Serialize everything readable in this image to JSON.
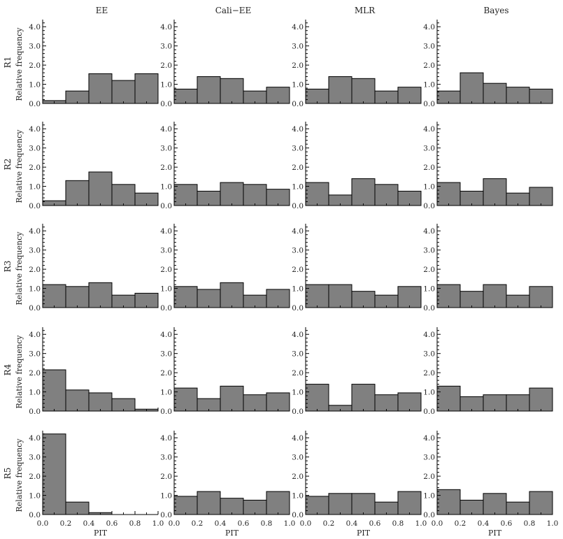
{
  "chart_data": {
    "type": "bar",
    "layout": "grid",
    "columns": [
      "EE",
      "Cali−EE",
      "MLR",
      "Bayes"
    ],
    "rows": [
      "R1",
      "R2",
      "R3",
      "R4",
      "R5"
    ],
    "ylabel": "Relative  frequency",
    "xlabel": "PIT",
    "xlim": [
      0,
      1
    ],
    "ylim": [
      0,
      4.3
    ],
    "xticks": [
      "0.0",
      "0.2",
      "0.4",
      "0.6",
      "0.8",
      "1.0"
    ],
    "yticks": [
      "0.0",
      "1.0",
      "2.0",
      "3.0",
      "4.0"
    ],
    "bins": [
      "0.0–0.2",
      "0.2–0.4",
      "0.4–0.6",
      "0.6–0.8",
      "0.8–1.0"
    ],
    "panels": [
      [
        {
          "column": "EE",
          "row": "R1",
          "values": [
            0.15,
            0.65,
            1.55,
            1.2,
            1.55
          ]
        },
        {
          "column": "Cali−EE",
          "row": "R1",
          "values": [
            0.75,
            1.4,
            1.3,
            0.65,
            0.85
          ]
        },
        {
          "column": "MLR",
          "row": "R1",
          "values": [
            0.75,
            1.4,
            1.3,
            0.65,
            0.85
          ]
        },
        {
          "column": "Bayes",
          "row": "R1",
          "values": [
            0.65,
            1.6,
            1.05,
            0.85,
            0.75
          ]
        }
      ],
      [
        {
          "column": "EE",
          "row": "R2",
          "values": [
            0.25,
            1.3,
            1.75,
            1.1,
            0.65
          ]
        },
        {
          "column": "Cali−EE",
          "row": "R2",
          "values": [
            1.1,
            0.75,
            1.2,
            1.1,
            0.85
          ]
        },
        {
          "column": "MLR",
          "row": "R2",
          "values": [
            1.2,
            0.55,
            1.4,
            1.1,
            0.75
          ]
        },
        {
          "column": "Bayes",
          "row": "R2",
          "values": [
            1.2,
            0.75,
            1.4,
            0.65,
            0.95
          ]
        }
      ],
      [
        {
          "column": "EE",
          "row": "R3",
          "values": [
            1.2,
            1.1,
            1.3,
            0.65,
            0.75
          ]
        },
        {
          "column": "Cali−EE",
          "row": "R3",
          "values": [
            1.1,
            0.95,
            1.3,
            0.65,
            0.95
          ]
        },
        {
          "column": "MLR",
          "row": "R3",
          "values": [
            1.2,
            1.2,
            0.85,
            0.65,
            1.1
          ]
        },
        {
          "column": "Bayes",
          "row": "R3",
          "values": [
            1.2,
            0.85,
            1.2,
            0.65,
            1.1
          ]
        }
      ],
      [
        {
          "column": "EE",
          "row": "R4",
          "values": [
            2.15,
            1.1,
            0.95,
            0.65,
            0.1
          ]
        },
        {
          "column": "Cali−EE",
          "row": "R4",
          "values": [
            1.2,
            0.65,
            1.3,
            0.85,
            0.95
          ]
        },
        {
          "column": "MLR",
          "row": "R4",
          "values": [
            1.4,
            0.3,
            1.4,
            0.85,
            0.95
          ]
        },
        {
          "column": "Bayes",
          "row": "R4",
          "values": [
            1.3,
            0.75,
            0.85,
            0.85,
            1.2
          ]
        }
      ],
      [
        {
          "column": "EE",
          "row": "R5",
          "values": [
            4.2,
            0.65,
            0.1,
            0.0,
            0.0
          ]
        },
        {
          "column": "Cali−EE",
          "row": "R5",
          "values": [
            0.95,
            1.2,
            0.85,
            0.75,
            1.2
          ]
        },
        {
          "column": "MLR",
          "row": "R5",
          "values": [
            0.95,
            1.1,
            1.1,
            0.65,
            1.2
          ]
        },
        {
          "column": "Bayes",
          "row": "R5",
          "values": [
            1.3,
            0.75,
            1.1,
            0.65,
            1.2
          ]
        }
      ]
    ]
  }
}
